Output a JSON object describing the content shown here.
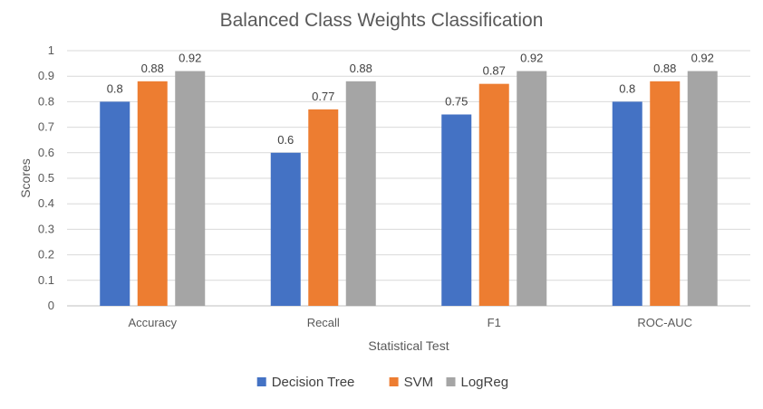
{
  "chart_data": {
    "type": "bar",
    "title": "Balanced Class Weights Classification",
    "xlabel": "Statistical Test",
    "ylabel": "Scores",
    "categories": [
      "Accuracy",
      "Recall",
      "F1",
      "ROC-AUC"
    ],
    "series": [
      {
        "name": "Decision Tree",
        "color": "#4472C4",
        "values": [
          0.8,
          0.6,
          0.75,
          0.8
        ]
      },
      {
        "name": "SVM",
        "color": "#ED7D31",
        "values": [
          0.88,
          0.77,
          0.87,
          0.88
        ]
      },
      {
        "name": "LogReg",
        "color": "#A5A5A5",
        "values": [
          0.92,
          0.88,
          0.92,
          0.92
        ]
      }
    ],
    "y_ticks": [
      "0",
      "0.1",
      "0.2",
      "0.3",
      "0.4",
      "0.5",
      "0.6",
      "0.7",
      "0.8",
      "0.9",
      "1"
    ],
    "ylim": [
      0,
      1
    ],
    "grid": true,
    "legend_position": "bottom"
  }
}
